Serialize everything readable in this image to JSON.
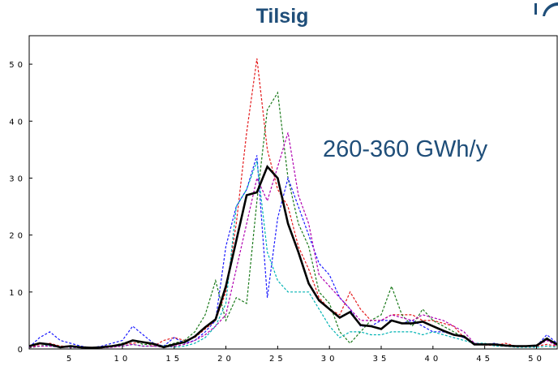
{
  "chart_data": {
    "type": "line",
    "title": "Tilsig",
    "annotation": "260-360 GWh/y",
    "xlabel": "",
    "ylabel": "",
    "xlim": [
      1,
      52
    ],
    "ylim": [
      0,
      55
    ],
    "x_ticks": [
      5,
      10,
      15,
      20,
      25,
      30,
      35,
      40,
      45,
      50
    ],
    "y_ticks": [
      0,
      10,
      20,
      30,
      40,
      50
    ],
    "x_tick_labels": [
      "5",
      "10",
      "15",
      "20",
      "25",
      "30",
      "35",
      "40",
      "45",
      "50"
    ],
    "y_tick_labels": [
      "0",
      "10",
      "20",
      "30",
      "40",
      "50"
    ],
    "grid": false,
    "legend": "none",
    "series": [
      {
        "color": "#000000",
        "style": "solid",
        "values": [
          0.5,
          1,
          0.8,
          0.3,
          0.5,
          0.3,
          0.2,
          0.3,
          0.5,
          0.8,
          1.5,
          1.2,
          0.9,
          0.3,
          0.8,
          1.2,
          2.2,
          3.8,
          5.2,
          11,
          19,
          27,
          27.5,
          32,
          30,
          22,
          17,
          11.5,
          8.5,
          7,
          5.5,
          6.5,
          4.2,
          4,
          3.5,
          5,
          4.5,
          4.5,
          4.8,
          4,
          3.2,
          2.5,
          2.2,
          0.8,
          0.8,
          0.8,
          0.6,
          0.5,
          0.5,
          0.6,
          1.8,
          0.8
        ]
      },
      {
        "color": "#e41a1c",
        "style": "dashed",
        "values": [
          0.3,
          0.8,
          1,
          0.5,
          0.5,
          0.2,
          0.3,
          0.2,
          0.5,
          0.8,
          1,
          1.2,
          0.5,
          1.5,
          2,
          1.5,
          2,
          3.5,
          5,
          10,
          22,
          38,
          51,
          35,
          28,
          25,
          18,
          14,
          9,
          7,
          6,
          10,
          7,
          5,
          5,
          6,
          6,
          6,
          5,
          5,
          4.5,
          4,
          2,
          0.8,
          0.7,
          0.6,
          1,
          0.5,
          0.5,
          0.5,
          0.8,
          0.5
        ]
      },
      {
        "color": "#1b7a1b",
        "style": "dashed",
        "values": [
          0.2,
          0.5,
          0.8,
          0.3,
          0.3,
          0.2,
          0.2,
          0.3,
          0.5,
          1,
          1.5,
          0.8,
          0.8,
          0.5,
          1,
          1.5,
          3,
          6,
          12,
          5,
          9,
          8,
          26,
          42,
          45,
          30,
          22,
          18,
          10,
          8,
          3,
          1,
          3,
          5,
          6,
          11,
          6,
          4,
          7,
          5,
          4,
          3,
          2,
          1,
          0.8,
          0.7,
          0.6,
          0.5,
          0.5,
          0.5,
          2,
          0.5
        ]
      },
      {
        "color": "#1a1aff",
        "style": "dashed",
        "values": [
          0.3,
          2,
          3,
          1.5,
          1,
          0.5,
          0.2,
          0.5,
          1,
          1.5,
          4,
          2.5,
          1,
          0.5,
          2,
          1,
          1.5,
          3,
          5,
          18,
          25,
          28,
          34,
          9,
          23,
          30,
          25,
          20,
          15,
          13,
          9,
          7,
          4,
          4,
          5,
          5,
          4.5,
          5,
          4,
          3,
          3,
          2.5,
          2,
          1,
          0.8,
          1,
          0.5,
          0.5,
          0.5,
          0.5,
          2.5,
          1
        ]
      },
      {
        "color": "#00b3b3",
        "style": "dashed",
        "values": [
          0.5,
          1,
          0.5,
          0.3,
          0.3,
          0.2,
          0.2,
          0.3,
          0.5,
          0.5,
          0.8,
          0.5,
          0.5,
          0.5,
          0.3,
          0.5,
          1,
          2,
          4,
          8,
          25,
          28,
          33,
          17,
          12,
          10,
          10,
          10,
          7,
          4,
          2,
          3,
          3,
          2.5,
          2.5,
          3,
          3,
          3,
          2.5,
          3,
          2.5,
          2,
          1.5,
          1,
          1,
          0.5,
          0.5,
          0.3,
          0.3,
          0.3,
          0.5,
          0.3
        ]
      },
      {
        "color": "#b000b0",
        "style": "dashed",
        "values": [
          0.3,
          0.5,
          0.5,
          0.3,
          0.3,
          0.2,
          0.2,
          0.2,
          0.3,
          0.5,
          0.8,
          0.5,
          0.5,
          0.3,
          0.5,
          0.8,
          1.5,
          2.5,
          4,
          6,
          14,
          22,
          30,
          26,
          32,
          38,
          27,
          22,
          13,
          11,
          9,
          7,
          5,
          5,
          5,
          6,
          5.5,
          5,
          6,
          5.5,
          5,
          4,
          3,
          1,
          0.8,
          0.7,
          0.6,
          0.5,
          0.5,
          0.5,
          1.5,
          0.5
        ]
      }
    ]
  }
}
